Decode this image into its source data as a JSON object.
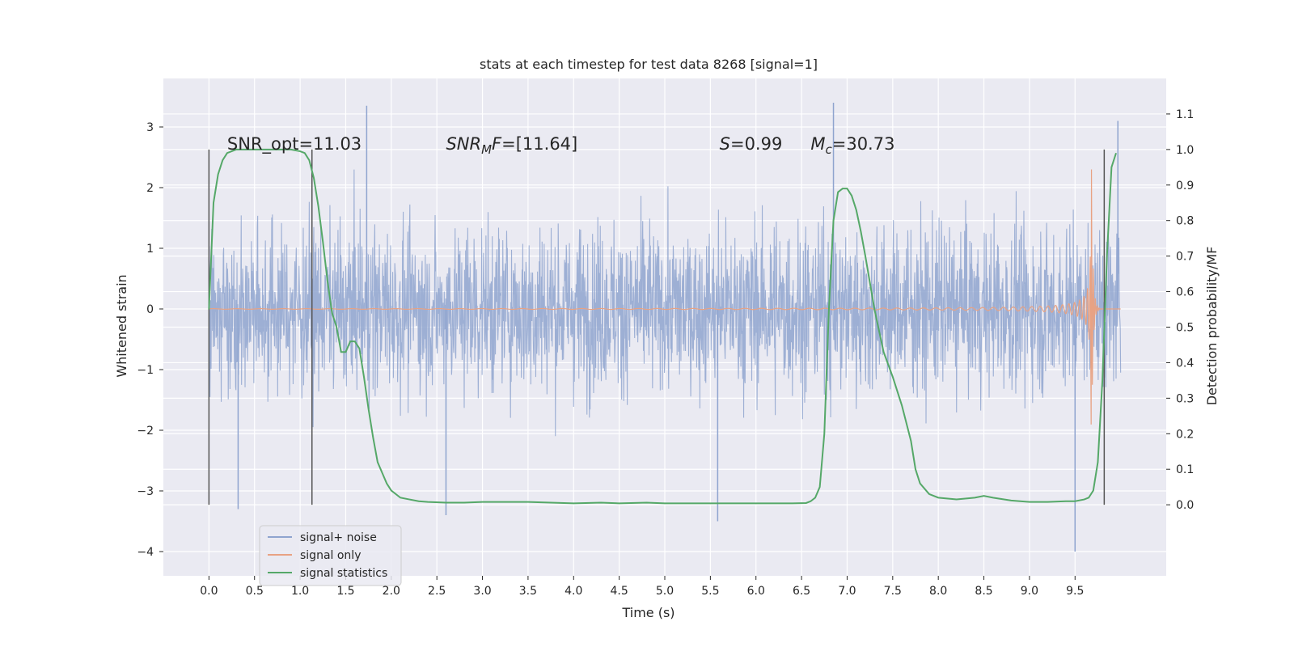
{
  "chart_data": {
    "type": "line",
    "title": "stats at each timestep for test data 8268 [signal=1]",
    "xlabel": "Time (s)",
    "ylabel": "Whitened strain",
    "y2label": "Detection probability/MF",
    "xlim": [
      -0.5,
      10.5
    ],
    "ylim": [
      -4.4,
      3.8
    ],
    "y2lim": [
      -0.2,
      1.2
    ],
    "x_ticks": [
      0.0,
      0.5,
      1.0,
      1.5,
      2.0,
      2.5,
      3.0,
      3.5,
      4.0,
      4.5,
      5.0,
      5.5,
      6.0,
      6.5,
      7.0,
      7.5,
      8.0,
      8.5,
      9.0,
      9.5
    ],
    "x_tick_labels": [
      "0.0",
      "0.5",
      "1.0",
      "1.5",
      "2.0",
      "2.5",
      "3.0",
      "3.5",
      "4.0",
      "4.5",
      "5.0",
      "5.5",
      "6.0",
      "6.5",
      "7.0",
      "7.5",
      "8.0",
      "8.5",
      "9.0",
      "9.5"
    ],
    "y_ticks": [
      3,
      2,
      1,
      0,
      -1,
      -2,
      -3,
      -4
    ],
    "y_tick_labels": [
      "3",
      "2",
      "1",
      "0",
      "−1",
      "−2",
      "−3",
      "−4"
    ],
    "y2_ticks": [
      1.1,
      1.0,
      0.9,
      0.8,
      0.7,
      0.6,
      0.5,
      0.4,
      0.3,
      0.2,
      0.1,
      0.0
    ],
    "y2_tick_labels": [
      "1.1",
      "1.0",
      "0.9",
      "0.8",
      "0.7",
      "0.6",
      "0.5",
      "0.4",
      "0.3",
      "0.2",
      "0.1",
      "0.0"
    ],
    "grid": true,
    "legend_position": "lower-left",
    "colors": {
      "background": "#eaeaf2",
      "grid": "#ffffff",
      "noise": "#8fa4cf",
      "signal": "#e8a283",
      "stats": "#55a868",
      "vline": "#555555"
    },
    "annotations": [
      {
        "name": "snr-opt-annotation",
        "text": "SNR_opt=11.03",
        "x": 0.2,
        "y2": 1.0
      },
      {
        "name": "snr-mf-annotation",
        "text": "SNR_MF=[11.64]",
        "x": 2.6,
        "y2": 1.0
      },
      {
        "name": "s-annotation",
        "text": "S=0.99",
        "x": 5.6,
        "y2": 1.0
      },
      {
        "name": "mc-annotation",
        "text": "M_c=30.73",
        "x": 6.6,
        "y2": 1.0
      }
    ],
    "vlines": [
      {
        "x": 0.0,
        "y2": [
          0.0,
          1.0
        ]
      },
      {
        "x": 1.13,
        "y2": [
          0.0,
          1.0
        ]
      },
      {
        "x": 9.82,
        "y2": [
          0.0,
          1.0
        ]
      }
    ],
    "series": [
      {
        "name": "signal+ noise",
        "type": "noise-band",
        "x_range": [
          0.0,
          10.0
        ],
        "envelope": 1.5,
        "notable_peaks": [
          {
            "x": 0.32,
            "y": -3.3
          },
          {
            "x": 1.73,
            "y": 3.35
          },
          {
            "x": 2.6,
            "y": -3.4
          },
          {
            "x": 5.58,
            "y": -3.5
          },
          {
            "x": 6.85,
            "y": 3.4
          },
          {
            "x": 9.5,
            "y": -4.0
          },
          {
            "x": 9.97,
            "y": 3.1
          }
        ]
      },
      {
        "name": "signal only",
        "type": "chirp",
        "x_range": [
          0.0,
          10.0
        ],
        "merger_time": 9.68,
        "peak_amplitude": 2.3
      },
      {
        "name": "signal statistics",
        "axis": "right",
        "x": [
          0.0,
          0.05,
          0.1,
          0.15,
          0.2,
          0.3,
          0.4,
          0.5,
          0.6,
          0.7,
          0.8,
          0.9,
          1.0,
          1.05,
          1.1,
          1.15,
          1.2,
          1.25,
          1.3,
          1.35,
          1.4,
          1.45,
          1.5,
          1.55,
          1.6,
          1.65,
          1.7,
          1.75,
          1.8,
          1.85,
          1.9,
          1.95,
          2.0,
          2.1,
          2.2,
          2.3,
          2.4,
          2.6,
          2.8,
          3.0,
          3.5,
          4.0,
          4.3,
          4.5,
          4.8,
          5.0,
          5.5,
          6.0,
          6.4,
          6.55,
          6.6,
          6.65,
          6.7,
          6.75,
          6.8,
          6.85,
          6.9,
          6.95,
          7.0,
          7.05,
          7.1,
          7.15,
          7.2,
          7.3,
          7.4,
          7.5,
          7.6,
          7.7,
          7.75,
          7.8,
          7.9,
          8.0,
          8.2,
          8.4,
          8.5,
          8.6,
          8.8,
          9.0,
          9.2,
          9.4,
          9.5,
          9.6,
          9.65,
          9.7,
          9.75,
          9.8,
          9.85,
          9.9,
          9.95
        ],
        "values": [
          0.55,
          0.85,
          0.93,
          0.97,
          0.99,
          1.0,
          1.0,
          1.0,
          1.0,
          1.0,
          1.0,
          1.0,
          0.995,
          0.99,
          0.97,
          0.92,
          0.84,
          0.74,
          0.63,
          0.54,
          0.5,
          0.43,
          0.43,
          0.46,
          0.46,
          0.44,
          0.36,
          0.27,
          0.19,
          0.12,
          0.09,
          0.06,
          0.04,
          0.02,
          0.015,
          0.01,
          0.008,
          0.006,
          0.006,
          0.008,
          0.008,
          0.004,
          0.006,
          0.004,
          0.006,
          0.004,
          0.004,
          0.004,
          0.004,
          0.005,
          0.01,
          0.02,
          0.05,
          0.2,
          0.55,
          0.8,
          0.88,
          0.89,
          0.89,
          0.87,
          0.83,
          0.77,
          0.7,
          0.55,
          0.43,
          0.36,
          0.28,
          0.18,
          0.1,
          0.06,
          0.03,
          0.02,
          0.015,
          0.02,
          0.025,
          0.02,
          0.012,
          0.008,
          0.008,
          0.01,
          0.01,
          0.015,
          0.02,
          0.04,
          0.12,
          0.35,
          0.7,
          0.95,
          0.99
        ]
      }
    ]
  }
}
